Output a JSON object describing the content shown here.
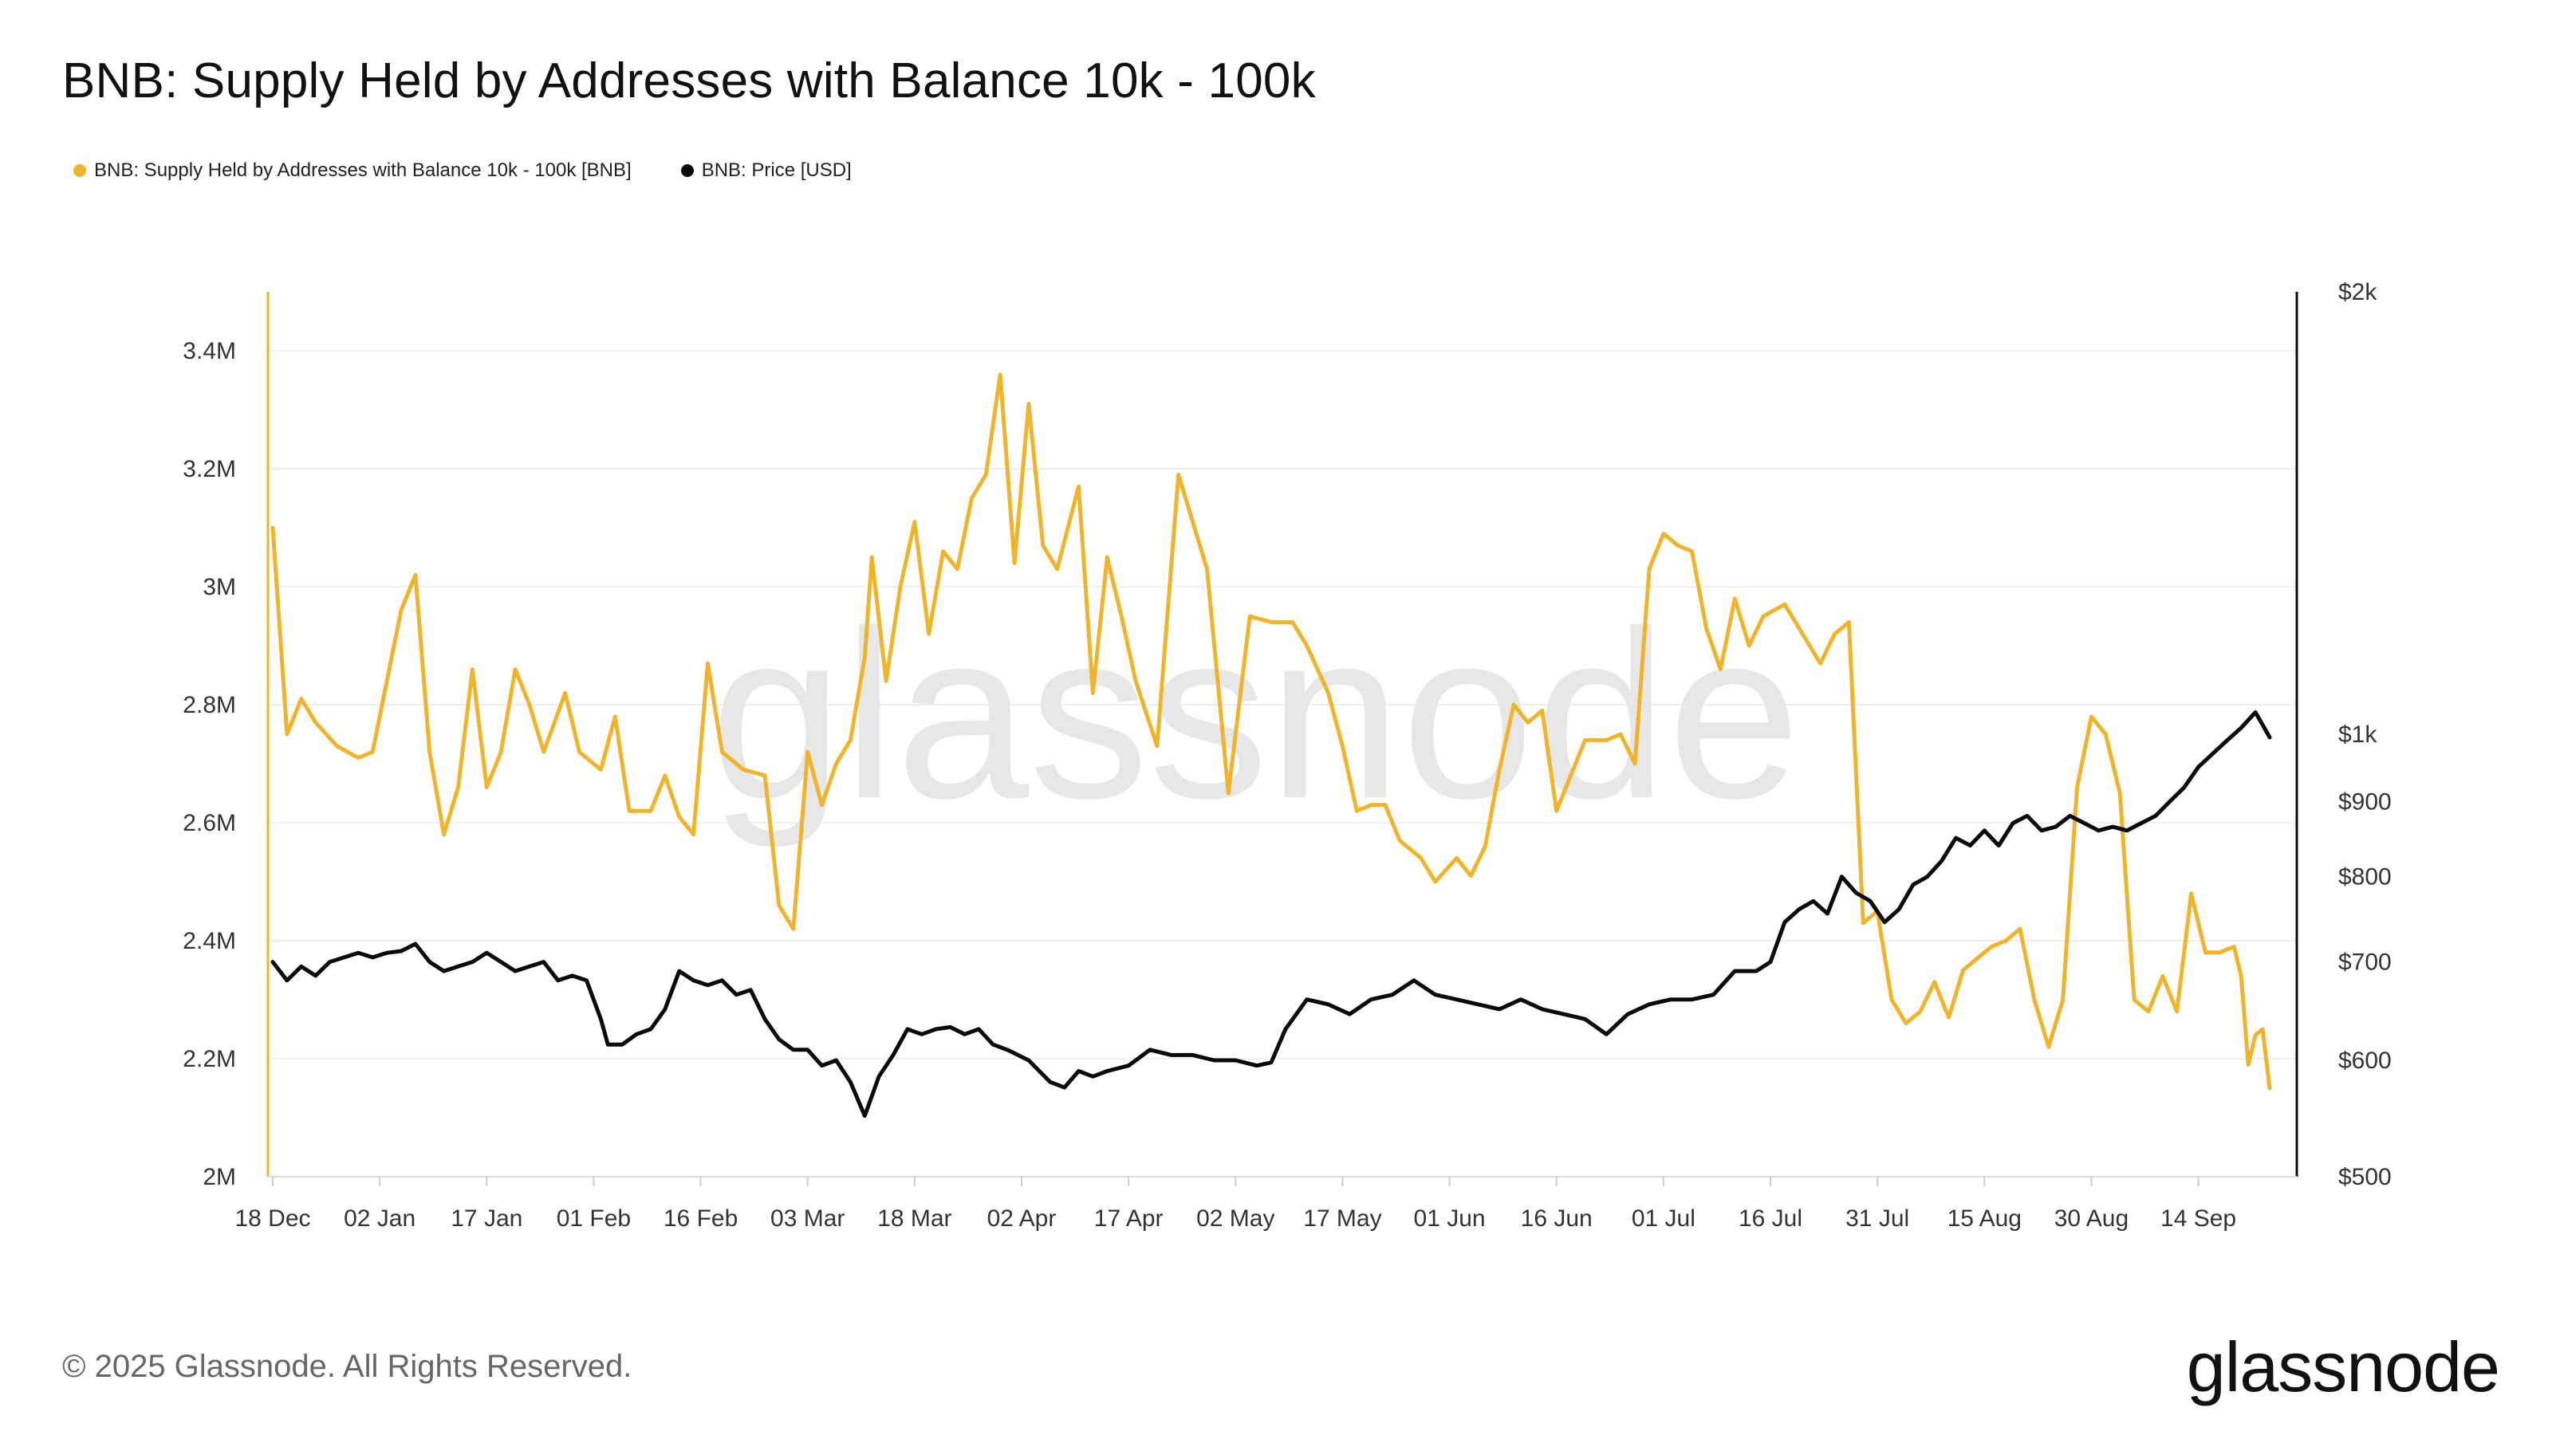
{
  "title": "BNB: Supply Held by Addresses with Balance 10k - 100k",
  "copyright": "© 2025 Glassnode. All Rights Reserved.",
  "brand": "glassnode",
  "watermark": "glassnode",
  "colors": {
    "supply": "#F0B42A",
    "price": "#0a0a0a",
    "grid": "#eeeeee",
    "watermark": "#e7e7e7"
  },
  "chart_data": {
    "type": "line",
    "x_ticks": [
      "18 Dec",
      "02 Jan",
      "17 Jan",
      "01 Feb",
      "16 Feb",
      "03 Mar",
      "18 Mar",
      "02 Apr",
      "17 Apr",
      "02 May",
      "17 May",
      "01 Jun",
      "16 Jun",
      "01 Jul",
      "16 Jul",
      "31 Jul",
      "15 Aug",
      "30 Aug",
      "14 Sep"
    ],
    "x_range": [
      "2024-12-18",
      "2025-09-24"
    ],
    "left_axis": {
      "ticks": [
        "2M",
        "2.2M",
        "2.4M",
        "2.6M",
        "2.8M",
        "3M",
        "3.2M",
        "3.4M"
      ],
      "tick_values": [
        2000000,
        2200000,
        2400000,
        2600000,
        2800000,
        3000000,
        3200000,
        3400000
      ],
      "range": [
        2000000,
        3500000
      ]
    },
    "right_axis": {
      "scale": "log",
      "ticks": [
        "$500",
        "$600",
        "$700",
        "$800",
        "$900",
        "$1k",
        "$2k"
      ],
      "tick_values": [
        500,
        600,
        700,
        800,
        900,
        1000,
        2000
      ],
      "range": [
        500,
        2000
      ]
    },
    "grid": true,
    "legend_position": "top-left",
    "series": [
      {
        "name": "BNB: Supply Held by Addresses with Balance 10k - 100k [BNB]",
        "axis": "left",
        "color": "#F0B42A",
        "points": [
          [
            "2024-12-18",
            3100000
          ],
          [
            "2024-12-20",
            2750000
          ],
          [
            "2024-12-22",
            2810000
          ],
          [
            "2024-12-24",
            2770000
          ],
          [
            "2024-12-27",
            2730000
          ],
          [
            "2024-12-30",
            2710000
          ],
          [
            "2025-01-01",
            2720000
          ],
          [
            "2025-01-03",
            2840000
          ],
          [
            "2025-01-05",
            2960000
          ],
          [
            "2025-01-07",
            3020000
          ],
          [
            "2025-01-09",
            2720000
          ],
          [
            "2025-01-11",
            2580000
          ],
          [
            "2025-01-13",
            2660000
          ],
          [
            "2025-01-15",
            2860000
          ],
          [
            "2025-01-17",
            2660000
          ],
          [
            "2025-01-19",
            2720000
          ],
          [
            "2025-01-21",
            2860000
          ],
          [
            "2025-01-23",
            2800000
          ],
          [
            "2025-01-25",
            2720000
          ],
          [
            "2025-01-28",
            2820000
          ],
          [
            "2025-01-30",
            2720000
          ],
          [
            "2025-02-02",
            2690000
          ],
          [
            "2025-02-04",
            2780000
          ],
          [
            "2025-02-06",
            2620000
          ],
          [
            "2025-02-09",
            2620000
          ],
          [
            "2025-02-11",
            2680000
          ],
          [
            "2025-02-13",
            2610000
          ],
          [
            "2025-02-15",
            2580000
          ],
          [
            "2025-02-17",
            2870000
          ],
          [
            "2025-02-19",
            2720000
          ],
          [
            "2025-02-22",
            2690000
          ],
          [
            "2025-02-25",
            2680000
          ],
          [
            "2025-02-27",
            2460000
          ],
          [
            "2025-03-01",
            2420000
          ],
          [
            "2025-03-03",
            2720000
          ],
          [
            "2025-03-05",
            2630000
          ],
          [
            "2025-03-07",
            2700000
          ],
          [
            "2025-03-09",
            2740000
          ],
          [
            "2025-03-11",
            2880000
          ],
          [
            "2025-03-12",
            3050000
          ],
          [
            "2025-03-14",
            2840000
          ],
          [
            "2025-03-16",
            3000000
          ],
          [
            "2025-03-18",
            3110000
          ],
          [
            "2025-03-20",
            2920000
          ],
          [
            "2025-03-22",
            3060000
          ],
          [
            "2025-03-24",
            3030000
          ],
          [
            "2025-03-26",
            3150000
          ],
          [
            "2025-03-28",
            3190000
          ],
          [
            "2025-03-30",
            3360000
          ],
          [
            "2025-04-01",
            3040000
          ],
          [
            "2025-04-03",
            3310000
          ],
          [
            "2025-04-05",
            3070000
          ],
          [
            "2025-04-07",
            3030000
          ],
          [
            "2025-04-10",
            3170000
          ],
          [
            "2025-04-12",
            2820000
          ],
          [
            "2025-04-14",
            3050000
          ],
          [
            "2025-04-16",
            2950000
          ],
          [
            "2025-04-18",
            2840000
          ],
          [
            "2025-04-21",
            2730000
          ],
          [
            "2025-04-24",
            3190000
          ],
          [
            "2025-04-26",
            3110000
          ],
          [
            "2025-04-28",
            3030000
          ],
          [
            "2025-05-01",
            2650000
          ],
          [
            "2025-05-04",
            2950000
          ],
          [
            "2025-05-07",
            2940000
          ],
          [
            "2025-05-10",
            2940000
          ],
          [
            "2025-05-12",
            2900000
          ],
          [
            "2025-05-15",
            2820000
          ],
          [
            "2025-05-17",
            2730000
          ],
          [
            "2025-05-19",
            2620000
          ],
          [
            "2025-05-21",
            2630000
          ],
          [
            "2025-05-23",
            2630000
          ],
          [
            "2025-05-25",
            2570000
          ],
          [
            "2025-05-28",
            2540000
          ],
          [
            "2025-05-30",
            2500000
          ],
          [
            "2025-06-02",
            2540000
          ],
          [
            "2025-06-04",
            2510000
          ],
          [
            "2025-06-06",
            2560000
          ],
          [
            "2025-06-08",
            2690000
          ],
          [
            "2025-06-10",
            2800000
          ],
          [
            "2025-06-12",
            2770000
          ],
          [
            "2025-06-14",
            2790000
          ],
          [
            "2025-06-16",
            2620000
          ],
          [
            "2025-06-18",
            2680000
          ],
          [
            "2025-06-20",
            2740000
          ],
          [
            "2025-06-23",
            2740000
          ],
          [
            "2025-06-25",
            2750000
          ],
          [
            "2025-06-27",
            2700000
          ],
          [
            "2025-06-29",
            3030000
          ],
          [
            "2025-07-01",
            3090000
          ],
          [
            "2025-07-03",
            3070000
          ],
          [
            "2025-07-05",
            3060000
          ],
          [
            "2025-07-07",
            2930000
          ],
          [
            "2025-07-09",
            2860000
          ],
          [
            "2025-07-11",
            2980000
          ],
          [
            "2025-07-13",
            2900000
          ],
          [
            "2025-07-15",
            2950000
          ],
          [
            "2025-07-18",
            2970000
          ],
          [
            "2025-07-20",
            2930000
          ],
          [
            "2025-07-23",
            2870000
          ],
          [
            "2025-07-25",
            2920000
          ],
          [
            "2025-07-27",
            2940000
          ],
          [
            "2025-07-29",
            2430000
          ],
          [
            "2025-07-31",
            2450000
          ],
          [
            "2025-08-02",
            2300000
          ],
          [
            "2025-08-04",
            2260000
          ],
          [
            "2025-08-06",
            2280000
          ],
          [
            "2025-08-08",
            2330000
          ],
          [
            "2025-08-10",
            2270000
          ],
          [
            "2025-08-12",
            2350000
          ],
          [
            "2025-08-14",
            2370000
          ],
          [
            "2025-08-16",
            2390000
          ],
          [
            "2025-08-18",
            2400000
          ],
          [
            "2025-08-20",
            2420000
          ],
          [
            "2025-08-22",
            2300000
          ],
          [
            "2025-08-24",
            2220000
          ],
          [
            "2025-08-26",
            2300000
          ],
          [
            "2025-08-28",
            2660000
          ],
          [
            "2025-08-30",
            2780000
          ],
          [
            "2025-09-01",
            2750000
          ],
          [
            "2025-09-03",
            2650000
          ],
          [
            "2025-09-05",
            2300000
          ],
          [
            "2025-09-07",
            2280000
          ],
          [
            "2025-09-09",
            2340000
          ],
          [
            "2025-09-11",
            2280000
          ],
          [
            "2025-09-13",
            2480000
          ],
          [
            "2025-09-15",
            2380000
          ],
          [
            "2025-09-17",
            2380000
          ],
          [
            "2025-09-19",
            2390000
          ],
          [
            "2025-09-20",
            2340000
          ],
          [
            "2025-09-21",
            2190000
          ],
          [
            "2025-09-22",
            2240000
          ],
          [
            "2025-09-23",
            2250000
          ],
          [
            "2025-09-24",
            2150000
          ]
        ]
      },
      {
        "name": "BNB: Price [USD]",
        "axis": "right",
        "color": "#0a0a0a",
        "points": [
          [
            "2024-12-18",
            700
          ],
          [
            "2024-12-20",
            680
          ],
          [
            "2024-12-22",
            695
          ],
          [
            "2024-12-24",
            685
          ],
          [
            "2024-12-26",
            700
          ],
          [
            "2024-12-28",
            705
          ],
          [
            "2024-12-30",
            710
          ],
          [
            "2025-01-01",
            705
          ],
          [
            "2025-01-03",
            710
          ],
          [
            "2025-01-05",
            712
          ],
          [
            "2025-01-07",
            720
          ],
          [
            "2025-01-09",
            700
          ],
          [
            "2025-01-11",
            690
          ],
          [
            "2025-01-13",
            695
          ],
          [
            "2025-01-15",
            700
          ],
          [
            "2025-01-17",
            710
          ],
          [
            "2025-01-19",
            700
          ],
          [
            "2025-01-21",
            690
          ],
          [
            "2025-01-23",
            695
          ],
          [
            "2025-01-25",
            700
          ],
          [
            "2025-01-27",
            680
          ],
          [
            "2025-01-29",
            685
          ],
          [
            "2025-01-31",
            680
          ],
          [
            "2025-02-02",
            640
          ],
          [
            "2025-02-03",
            615
          ],
          [
            "2025-02-05",
            615
          ],
          [
            "2025-02-07",
            625
          ],
          [
            "2025-02-09",
            630
          ],
          [
            "2025-02-11",
            650
          ],
          [
            "2025-02-13",
            690
          ],
          [
            "2025-02-15",
            680
          ],
          [
            "2025-02-17",
            675
          ],
          [
            "2025-02-19",
            680
          ],
          [
            "2025-02-21",
            665
          ],
          [
            "2025-02-23",
            670
          ],
          [
            "2025-02-25",
            640
          ],
          [
            "2025-02-27",
            620
          ],
          [
            "2025-03-01",
            610
          ],
          [
            "2025-03-03",
            610
          ],
          [
            "2025-03-05",
            595
          ],
          [
            "2025-03-07",
            600
          ],
          [
            "2025-03-09",
            580
          ],
          [
            "2025-03-11",
            550
          ],
          [
            "2025-03-13",
            585
          ],
          [
            "2025-03-15",
            605
          ],
          [
            "2025-03-17",
            630
          ],
          [
            "2025-03-19",
            625
          ],
          [
            "2025-03-21",
            630
          ],
          [
            "2025-03-23",
            632
          ],
          [
            "2025-03-25",
            625
          ],
          [
            "2025-03-27",
            630
          ],
          [
            "2025-03-29",
            615
          ],
          [
            "2025-03-31",
            610
          ],
          [
            "2025-04-03",
            600
          ],
          [
            "2025-04-06",
            580
          ],
          [
            "2025-04-08",
            575
          ],
          [
            "2025-04-10",
            590
          ],
          [
            "2025-04-12",
            585
          ],
          [
            "2025-04-14",
            590
          ],
          [
            "2025-04-17",
            595
          ],
          [
            "2025-04-20",
            610
          ],
          [
            "2025-04-23",
            605
          ],
          [
            "2025-04-26",
            605
          ],
          [
            "2025-04-29",
            600
          ],
          [
            "2025-05-02",
            600
          ],
          [
            "2025-05-05",
            595
          ],
          [
            "2025-05-07",
            598
          ],
          [
            "2025-05-09",
            630
          ],
          [
            "2025-05-12",
            660
          ],
          [
            "2025-05-15",
            655
          ],
          [
            "2025-05-18",
            645
          ],
          [
            "2025-05-21",
            660
          ],
          [
            "2025-05-24",
            665
          ],
          [
            "2025-05-27",
            680
          ],
          [
            "2025-05-30",
            665
          ],
          [
            "2025-06-02",
            660
          ],
          [
            "2025-06-05",
            655
          ],
          [
            "2025-06-08",
            650
          ],
          [
            "2025-06-11",
            660
          ],
          [
            "2025-06-14",
            650
          ],
          [
            "2025-06-17",
            645
          ],
          [
            "2025-06-20",
            640
          ],
          [
            "2025-06-23",
            625
          ],
          [
            "2025-06-26",
            645
          ],
          [
            "2025-06-29",
            655
          ],
          [
            "2025-07-02",
            660
          ],
          [
            "2025-07-05",
            660
          ],
          [
            "2025-07-08",
            665
          ],
          [
            "2025-07-11",
            690
          ],
          [
            "2025-07-14",
            690
          ],
          [
            "2025-07-16",
            700
          ],
          [
            "2025-07-18",
            745
          ],
          [
            "2025-07-20",
            760
          ],
          [
            "2025-07-22",
            770
          ],
          [
            "2025-07-24",
            755
          ],
          [
            "2025-07-26",
            800
          ],
          [
            "2025-07-28",
            780
          ],
          [
            "2025-07-30",
            770
          ],
          [
            "2025-08-01",
            745
          ],
          [
            "2025-08-03",
            760
          ],
          [
            "2025-08-05",
            790
          ],
          [
            "2025-08-07",
            800
          ],
          [
            "2025-08-09",
            820
          ],
          [
            "2025-08-11",
            850
          ],
          [
            "2025-08-13",
            840
          ],
          [
            "2025-08-15",
            860
          ],
          [
            "2025-08-17",
            840
          ],
          [
            "2025-08-19",
            870
          ],
          [
            "2025-08-21",
            880
          ],
          [
            "2025-08-23",
            860
          ],
          [
            "2025-08-25",
            865
          ],
          [
            "2025-08-27",
            880
          ],
          [
            "2025-08-29",
            870
          ],
          [
            "2025-08-31",
            860
          ],
          [
            "2025-09-02",
            865
          ],
          [
            "2025-09-04",
            860
          ],
          [
            "2025-09-06",
            870
          ],
          [
            "2025-09-08",
            880
          ],
          [
            "2025-09-10",
            900
          ],
          [
            "2025-09-12",
            920
          ],
          [
            "2025-09-14",
            950
          ],
          [
            "2025-09-16",
            970
          ],
          [
            "2025-09-18",
            990
          ],
          [
            "2025-09-20",
            1010
          ],
          [
            "2025-09-22",
            1035
          ],
          [
            "2025-09-23",
            1015
          ],
          [
            "2025-09-24",
            995
          ]
        ]
      }
    ]
  }
}
